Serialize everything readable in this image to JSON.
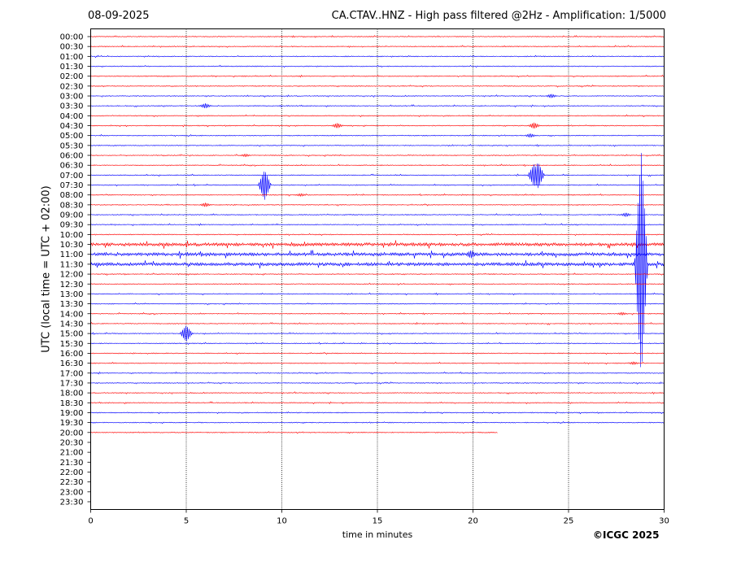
{
  "header": {
    "date": "08-09-2025",
    "title": "CA.CTAV..HNZ - High pass filtered @2Hz - Amplification: 1/5000"
  },
  "footer": {
    "credit": "©ICGC 2025"
  },
  "colors": {
    "red_trace": "#ff0000",
    "blue_trace": "#0000ff",
    "grid": "#000000"
  },
  "chart_data": {
    "type": "line",
    "subtype": "helicorder",
    "title": "CA.CTAV..HNZ - High pass filtered @2Hz - Amplification: 1/5000",
    "date": "08-09-2025",
    "xlabel": "time in minutes",
    "ylabel": "UTC (local time = UTC + 02:00)",
    "xlim": [
      0,
      30
    ],
    "x_ticks": [
      "0",
      "5",
      "10",
      "15",
      "20",
      "25",
      "30"
    ],
    "x_tick_values": [
      0,
      5,
      10,
      15,
      20,
      25,
      30
    ],
    "vertical_grid_minutes": [
      5,
      10,
      15,
      20,
      25
    ],
    "rows": [
      "00:00",
      "00:30",
      "01:00",
      "01:30",
      "02:00",
      "02:30",
      "03:00",
      "03:30",
      "04:00",
      "04:30",
      "05:00",
      "05:30",
      "06:00",
      "06:30",
      "07:00",
      "07:30",
      "08:00",
      "08:30",
      "09:00",
      "09:30",
      "10:00",
      "10:30",
      "11:00",
      "11:30",
      "12:00",
      "12:30",
      "13:00",
      "13:30",
      "14:00",
      "14:30",
      "15:00",
      "15:30",
      "16:00",
      "16:30",
      "17:00",
      "17:30",
      "18:00",
      "18:30",
      "19:00",
      "19:30",
      "20:00",
      "20:30",
      "21:00",
      "21:30",
      "22:00",
      "22:30",
      "23:00",
      "23:30"
    ],
    "trace_color_cycle": [
      "red",
      "red",
      "blue",
      "blue"
    ],
    "data_end": {
      "row": "20:00",
      "minute": 21.3
    },
    "noisy_rows": [
      "10:30",
      "11:00",
      "11:30"
    ],
    "events": [
      {
        "row": "03:00",
        "minute": 24.1,
        "amplitude": 0.2
      },
      {
        "row": "03:30",
        "minute": 6.0,
        "amplitude": 0.25
      },
      {
        "row": "04:30",
        "minute": 12.9,
        "amplitude": 0.25
      },
      {
        "row": "04:30",
        "minute": 23.2,
        "amplitude": 0.3
      },
      {
        "row": "05:00",
        "minute": 23.0,
        "amplitude": 0.2
      },
      {
        "row": "06:00",
        "minute": 8.1,
        "amplitude": 0.15
      },
      {
        "row": "07:00",
        "minute": 23.2,
        "amplitude": 1.1
      },
      {
        "row": "07:00",
        "minute": 23.4,
        "amplitude": 1.3
      },
      {
        "row": "07:30",
        "minute": 9.1,
        "amplitude": 1.5
      },
      {
        "row": "08:00",
        "minute": 11.0,
        "amplitude": 0.15
      },
      {
        "row": "08:30",
        "minute": 6.0,
        "amplitude": 0.2
      },
      {
        "row": "09:00",
        "minute": 28.0,
        "amplitude": 0.2
      },
      {
        "row": "11:00",
        "minute": 19.9,
        "amplitude": 0.4
      },
      {
        "row": "11:30",
        "minute": 28.8,
        "amplitude": 11.5
      },
      {
        "row": "14:00",
        "minute": 27.8,
        "amplitude": 0.15
      },
      {
        "row": "15:00",
        "minute": 5.0,
        "amplitude": 0.8
      },
      {
        "row": "16:30",
        "minute": 28.4,
        "amplitude": 0.15
      }
    ]
  }
}
